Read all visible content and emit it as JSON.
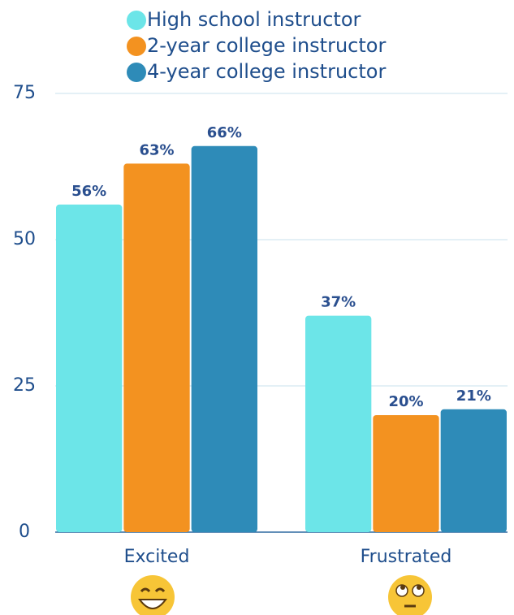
{
  "chart_data": {
    "type": "bar",
    "categories": [
      "Excited",
      "Frustrated"
    ],
    "series": [
      {
        "name": "High school instructor",
        "color": "#6ce5e8",
        "values": [
          56,
          37
        ],
        "value_labels": [
          "56%",
          "37%"
        ]
      },
      {
        "name": "2-year college instructor",
        "color": "#f39220",
        "values": [
          63,
          20
        ],
        "value_labels": [
          "63%",
          "20%"
        ]
      },
      {
        "name": "4-year college instructor",
        "color": "#2e8bb8",
        "values": [
          66,
          21
        ],
        "value_labels": [
          "66%",
          "21%"
        ]
      }
    ],
    "ylim": [
      0,
      75
    ],
    "yticks": [
      0,
      25,
      50,
      75
    ],
    "grid": true
  }
}
